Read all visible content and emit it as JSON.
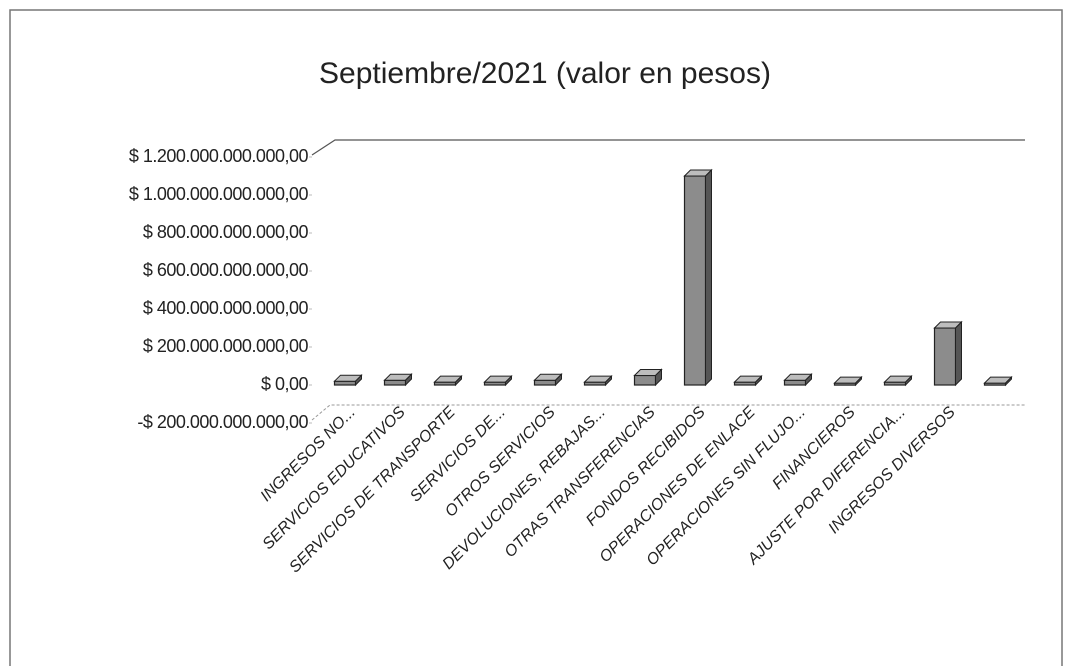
{
  "chart_data": {
    "type": "bar",
    "title": "Septiembre/2021 (valor en pesos)",
    "categories": [
      "INGRESOS NO...",
      "SERVICIOS EDUCATIVOS",
      "SERVICIOS DE TRANSPORTE",
      "SERVICIOS DE...",
      "OTROS SERVICIOS",
      "DEVOLUCIONES, REBAJAS...",
      "OTRAS TRANSFERENCIAS",
      "FONDOS RECIBIDOS",
      "OPERACIONES DE ENLACE",
      "OPERACIONES SIN FLUJO...",
      "FINANCIEROS",
      "AJUSTE POR DIFERENCIA...",
      "INGRESOS DIVERSOS",
      null
    ],
    "values": [
      20000000000,
      25000000000,
      15000000000,
      15000000000,
      25000000000,
      15000000000,
      50000000000,
      1100000000000,
      15000000000,
      25000000000,
      10000000000,
      15000000000,
      300000000000,
      10000000000
    ],
    "color": "#8c8c8c",
    "ylim": [
      -200000000000,
      1200000000000
    ],
    "yticks": [
      {
        "value": -200000000000,
        "label": "-$ 200.000.000.000,00"
      },
      {
        "value": 0,
        "label": "$ 0,00"
      },
      {
        "value": 200000000000,
        "label": "$ 200.000.000.000,00"
      },
      {
        "value": 400000000000,
        "label": "$ 400.000.000.000,00"
      },
      {
        "value": 600000000000,
        "label": "$ 600.000.000.000,00"
      },
      {
        "value": 800000000000,
        "label": "$ 800.000.000.000,00"
      },
      {
        "value": 1000000000000,
        "label": "$ 1.000.000.000.000,00"
      },
      {
        "value": 1200000000000,
        "label": "$ 1.200.000.000.000,00"
      }
    ],
    "grid": false
  }
}
